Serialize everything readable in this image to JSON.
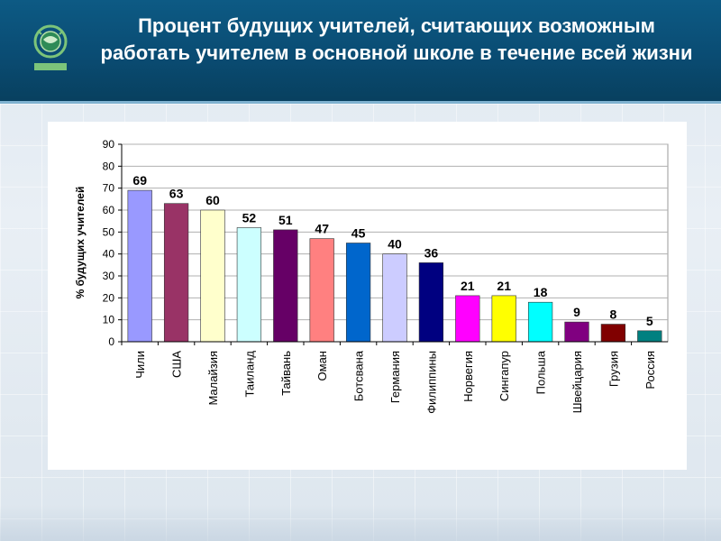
{
  "slide": {
    "title": "Процент будущих учителей, считающих возможным работать учителем в основной школе в течение всей жизни",
    "logo_icon": "teds-globe-logo"
  },
  "chart_data": {
    "type": "bar",
    "title": "",
    "xlabel": "",
    "ylabel": "% будущих учителей",
    "ylim": [
      0,
      90
    ],
    "yticks": [
      0,
      10,
      20,
      30,
      40,
      50,
      60,
      70,
      80,
      90
    ],
    "grid": true,
    "categories": [
      "Чили",
      "США",
      "Малайзия",
      "Таиланд",
      "Тайвань",
      "Оман",
      "Ботсвана",
      "Германия",
      "Филиппины",
      "Норвегия",
      "Сингапур",
      "Польша",
      "Швейцария",
      "Грузия",
      "Россия"
    ],
    "values": [
      69,
      63,
      60,
      52,
      51,
      47,
      45,
      40,
      36,
      21,
      21,
      18,
      9,
      8,
      5
    ],
    "colors": [
      "#9999ff",
      "#993366",
      "#ffffcc",
      "#ccffff",
      "#660066",
      "#ff8080",
      "#0066cc",
      "#ccccff",
      "#000080",
      "#ff00ff",
      "#ffff00",
      "#00ffff",
      "#800080",
      "#800000",
      "#008080"
    ]
  }
}
